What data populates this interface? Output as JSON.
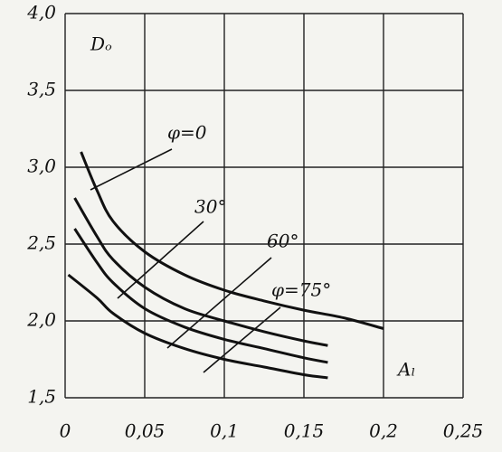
{
  "chart_data": {
    "type": "line",
    "xlim": [
      0,
      0.25
    ],
    "ylim": [
      1.5,
      4.0
    ],
    "xticks": [
      0,
      {
        "value": 0.05,
        "label": "0,05"
      },
      {
        "value": 0.1,
        "label": "0,1"
      },
      {
        "value": 0.15,
        "label": "0,15"
      },
      {
        "value": 0.2,
        "label": "0,2"
      },
      {
        "value": 0.25,
        "label": "0,25"
      }
    ],
    "yticks": [
      {
        "value": 1.5,
        "label": "1,5"
      },
      {
        "value": 2.0,
        "label": "2,0"
      },
      {
        "value": 2.5,
        "label": "2,5"
      },
      {
        "value": 3.0,
        "label": "3,0"
      },
      {
        "value": 3.5,
        "label": "3,5"
      },
      {
        "value": 4.0,
        "label": "4,0"
      }
    ],
    "grid": true,
    "color": "#111111",
    "ylabel": "Dₒ",
    "xlabel": "Aₗ",
    "series": [
      {
        "name": "φ=0",
        "x": [
          0.01,
          0.02,
          0.03,
          0.05,
          0.075,
          0.1,
          0.125,
          0.15,
          0.175,
          0.2
        ],
        "values": [
          3.1,
          2.85,
          2.65,
          2.45,
          2.3,
          2.2,
          2.13,
          2.07,
          2.02,
          1.95
        ]
      },
      {
        "name": "30°",
        "x": [
          0.006,
          0.02,
          0.03,
          0.05,
          0.075,
          0.1,
          0.125,
          0.15,
          0.165
        ],
        "values": [
          2.8,
          2.55,
          2.4,
          2.22,
          2.08,
          2.0,
          1.93,
          1.87,
          1.84
        ]
      },
      {
        "name": "60°",
        "x": [
          0.006,
          0.02,
          0.03,
          0.05,
          0.075,
          0.1,
          0.125,
          0.15,
          0.165
        ],
        "values": [
          2.6,
          2.38,
          2.25,
          2.08,
          1.96,
          1.88,
          1.82,
          1.76,
          1.73
        ]
      },
      {
        "name": "φ=75°",
        "x": [
          0.002,
          0.02,
          0.03,
          0.05,
          0.075,
          0.1,
          0.125,
          0.15,
          0.165
        ],
        "values": [
          2.3,
          2.15,
          2.05,
          1.92,
          1.82,
          1.75,
          1.7,
          1.65,
          1.63
        ]
      }
    ]
  }
}
